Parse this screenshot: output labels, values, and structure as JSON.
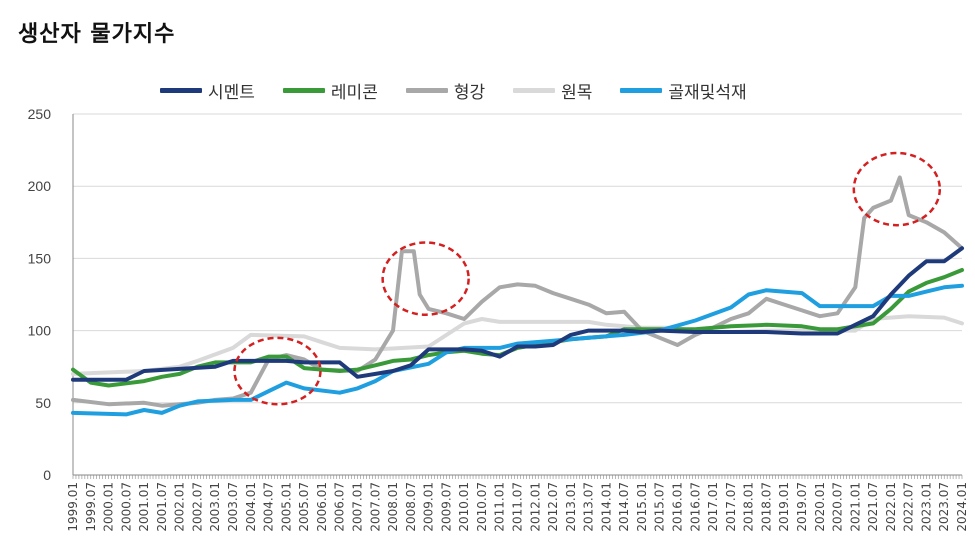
{
  "title": "생산자  물가지수",
  "chart_data": {
    "type": "line",
    "title": "생산자  물가지수",
    "xlabel": "",
    "ylabel": "",
    "ylim": [
      0,
      250
    ],
    "yticks": [
      0,
      50,
      100,
      150,
      200,
      250
    ],
    "xticks": [
      "1999.01",
      "1999.07",
      "2000.01",
      "2000.07",
      "2001.01",
      "2001.07",
      "2002.01",
      "2002.07",
      "2003.01",
      "2003.07",
      "2004.01",
      "2004.07",
      "2005.01",
      "2005.07",
      "2006.01",
      "2006.07",
      "2007.01",
      "2007.07",
      "2008.01",
      "2008.07",
      "2009.01",
      "2009.07",
      "2010.01",
      "2010.07",
      "2011.01",
      "2011.07",
      "2012.01",
      "2012.07",
      "2013.01",
      "2013.07",
      "2014.01",
      "2014.07",
      "2015.01",
      "2015.07",
      "2016.01",
      "2016.07",
      "2017.01",
      "2017.07",
      "2018.01",
      "2018.07",
      "2019.01",
      "2019.07",
      "2020.01",
      "2020.07",
      "2021.01",
      "2021.07",
      "2022.01",
      "2022.07",
      "2023.01",
      "2023.07",
      "2024.01"
    ],
    "grid": true,
    "legend": "top",
    "series": [
      {
        "name": "시멘트",
        "color": "#1f3a7a",
        "points": [
          [
            "1999.01",
            66
          ],
          [
            "2000.07",
            66
          ],
          [
            "2001.01",
            72
          ],
          [
            "2003.01",
            75
          ],
          [
            "2003.07",
            79
          ],
          [
            "2005.01",
            79
          ],
          [
            "2005.07",
            78
          ],
          [
            "2006.07",
            78
          ],
          [
            "2007.01",
            68
          ],
          [
            "2008.01",
            72
          ],
          [
            "2008.07",
            76
          ],
          [
            "2009.01",
            87
          ],
          [
            "2010.01",
            87
          ],
          [
            "2010.07",
            86
          ],
          [
            "2011.01",
            82
          ],
          [
            "2011.07",
            89
          ],
          [
            "2012.01",
            89
          ],
          [
            "2012.07",
            90
          ],
          [
            "2013.01",
            97
          ],
          [
            "2013.07",
            100
          ],
          [
            "2014.07",
            100
          ],
          [
            "2015.01",
            99
          ],
          [
            "2015.07",
            100
          ],
          [
            "2016.07",
            99
          ],
          [
            "2017.07",
            99
          ],
          [
            "2018.07",
            99
          ],
          [
            "2019.07",
            98
          ],
          [
            "2020.07",
            98
          ],
          [
            "2021.01",
            104
          ],
          [
            "2021.07",
            110
          ],
          [
            "2022.01",
            125
          ],
          [
            "2022.07",
            138
          ],
          [
            "2023.01",
            148
          ],
          [
            "2023.07",
            148
          ],
          [
            "2024.01",
            157
          ]
        ]
      },
      {
        "name": "레미콘",
        "color": "#3a9a3a",
        "points": [
          [
            "1999.01",
            73
          ],
          [
            "1999.07",
            64
          ],
          [
            "2000.01",
            62
          ],
          [
            "2001.01",
            65
          ],
          [
            "2001.07",
            68
          ],
          [
            "2002.01",
            70
          ],
          [
            "2002.07",
            75
          ],
          [
            "2003.01",
            78
          ],
          [
            "2003.07",
            78
          ],
          [
            "2004.01",
            78
          ],
          [
            "2004.07",
            82
          ],
          [
            "2005.01",
            82
          ],
          [
            "2005.07",
            74
          ],
          [
            "2006.01",
            73
          ],
          [
            "2006.07",
            72
          ],
          [
            "2007.01",
            73
          ],
          [
            "2007.07",
            76
          ],
          [
            "2008.01",
            79
          ],
          [
            "2008.07",
            80
          ],
          [
            "2009.01",
            83
          ],
          [
            "2009.07",
            85
          ],
          [
            "2010.01",
            86
          ],
          [
            "2010.07",
            84
          ],
          [
            "2011.01",
            83
          ],
          [
            "2011.07",
            88
          ],
          [
            "2012.01",
            90
          ],
          [
            "2012.07",
            92
          ],
          [
            "2013.01",
            94
          ],
          [
            "2013.07",
            95
          ],
          [
            "2014.01",
            96
          ],
          [
            "2014.07",
            101
          ],
          [
            "2015.07",
            101
          ],
          [
            "2016.07",
            101
          ],
          [
            "2017.07",
            103
          ],
          [
            "2018.07",
            104
          ],
          [
            "2019.07",
            103
          ],
          [
            "2020.01",
            101
          ],
          [
            "2020.07",
            101
          ],
          [
            "2021.07",
            105
          ],
          [
            "2022.01",
            115
          ],
          [
            "2022.07",
            127
          ],
          [
            "2023.01",
            133
          ],
          [
            "2023.07",
            137
          ],
          [
            "2024.01",
            142
          ]
        ]
      },
      {
        "name": "형강",
        "color": "#a8a8a8",
        "points": [
          [
            "1999.01",
            52
          ],
          [
            "2000.01",
            49
          ],
          [
            "2001.01",
            50
          ],
          [
            "2001.07",
            48
          ],
          [
            "2002.07",
            50
          ],
          [
            "2003.01",
            52
          ],
          [
            "2003.07",
            53
          ],
          [
            "2004.01",
            57
          ],
          [
            "2004.07",
            80
          ],
          [
            "2005.01",
            83
          ],
          [
            "2005.07",
            80
          ],
          [
            "2006.01",
            73
          ],
          [
            "2007.01",
            72
          ],
          [
            "2007.07",
            80
          ],
          [
            "2008.01",
            100
          ],
          [
            "2008.04",
            155
          ],
          [
            "2008.08",
            155
          ],
          [
            "2008.10",
            125
          ],
          [
            "2009.01",
            115
          ],
          [
            "2009.07",
            112
          ],
          [
            "2010.01",
            108
          ],
          [
            "2010.07",
            120
          ],
          [
            "2011.01",
            130
          ],
          [
            "2011.07",
            132
          ],
          [
            "2012.01",
            131
          ],
          [
            "2012.07",
            126
          ],
          [
            "2013.01",
            122
          ],
          [
            "2013.07",
            118
          ],
          [
            "2014.01",
            112
          ],
          [
            "2014.07",
            113
          ],
          [
            "2015.01",
            100
          ],
          [
            "2015.07",
            95
          ],
          [
            "2016.01",
            90
          ],
          [
            "2016.07",
            97
          ],
          [
            "2017.01",
            102
          ],
          [
            "2017.07",
            108
          ],
          [
            "2018.01",
            112
          ],
          [
            "2018.07",
            122
          ],
          [
            "2019.01",
            118
          ],
          [
            "2019.07",
            114
          ],
          [
            "2020.01",
            110
          ],
          [
            "2020.07",
            112
          ],
          [
            "2021.01",
            130
          ],
          [
            "2021.04",
            178
          ],
          [
            "2021.07",
            185
          ],
          [
            "2022.01",
            190
          ],
          [
            "2022.04",
            206
          ],
          [
            "2022.07",
            180
          ],
          [
            "2023.01",
            175
          ],
          [
            "2023.07",
            168
          ],
          [
            "2024.01",
            157
          ]
        ]
      },
      {
        "name": "원목",
        "color": "#d9d9d9",
        "points": [
          [
            "1999.01",
            70
          ],
          [
            "2001.01",
            72
          ],
          [
            "2002.01",
            75
          ],
          [
            "2002.07",
            79
          ],
          [
            "2003.07",
            88
          ],
          [
            "2004.01",
            97
          ],
          [
            "2005.07",
            96
          ],
          [
            "2006.01",
            92
          ],
          [
            "2006.07",
            88
          ],
          [
            "2007.07",
            87
          ],
          [
            "2009.01",
            89
          ],
          [
            "2010.01",
            105
          ],
          [
            "2010.07",
            108
          ],
          [
            "2011.01",
            106
          ],
          [
            "2012.01",
            106
          ],
          [
            "2013.07",
            106
          ],
          [
            "2014.01",
            104
          ],
          [
            "2015.01",
            102
          ],
          [
            "2016.01",
            102
          ],
          [
            "2016.07",
            99
          ],
          [
            "2017.07",
            99
          ],
          [
            "2018.07",
            100
          ],
          [
            "2019.07",
            100
          ],
          [
            "2020.07",
            100
          ],
          [
            "2021.01",
            100
          ],
          [
            "2021.07",
            108
          ],
          [
            "2022.07",
            110
          ],
          [
            "2023.07",
            109
          ],
          [
            "2024.01",
            105
          ]
        ]
      },
      {
        "name": "골재및석재",
        "color": "#1f9fe0",
        "points": [
          [
            "1999.01",
            43
          ],
          [
            "2000.07",
            42
          ],
          [
            "2001.01",
            45
          ],
          [
            "2001.07",
            43
          ],
          [
            "2002.01",
            48
          ],
          [
            "2002.07",
            51
          ],
          [
            "2003.07",
            52
          ],
          [
            "2004.01",
            52
          ],
          [
            "2004.07",
            58
          ],
          [
            "2005.01",
            64
          ],
          [
            "2005.07",
            60
          ],
          [
            "2006.07",
            57
          ],
          [
            "2007.01",
            60
          ],
          [
            "2007.07",
            65
          ],
          [
            "2008.01",
            72
          ],
          [
            "2009.01",
            77
          ],
          [
            "2009.07",
            85
          ],
          [
            "2010.01",
            88
          ],
          [
            "2011.01",
            88
          ],
          [
            "2011.07",
            91
          ],
          [
            "2012.07",
            93
          ],
          [
            "2013.07",
            95
          ],
          [
            "2014.07",
            97
          ],
          [
            "2015.07",
            100
          ],
          [
            "2016.07",
            107
          ],
          [
            "2017.07",
            116
          ],
          [
            "2018.01",
            125
          ],
          [
            "2018.07",
            128
          ],
          [
            "2019.07",
            126
          ],
          [
            "2020.01",
            117
          ],
          [
            "2021.07",
            117
          ],
          [
            "2022.01",
            124
          ],
          [
            "2022.07",
            124
          ],
          [
            "2023.01",
            127
          ],
          [
            "2023.07",
            130
          ],
          [
            "2024.01",
            131
          ]
        ]
      }
    ],
    "annotations": [
      {
        "type": "dashed-circle",
        "color": "#d42020",
        "center_x": "2004.10",
        "center_y": 72,
        "rx_months": 10,
        "ry_value": 23
      },
      {
        "type": "dashed-circle",
        "color": "#d42020",
        "center_x": "2008.12",
        "center_y": 136,
        "rx_months": 10,
        "ry_value": 25
      },
      {
        "type": "dashed-circle",
        "color": "#d42020",
        "center_x": "2022.03",
        "center_y": 198,
        "rx_months": 10,
        "ry_value": 25
      }
    ]
  }
}
